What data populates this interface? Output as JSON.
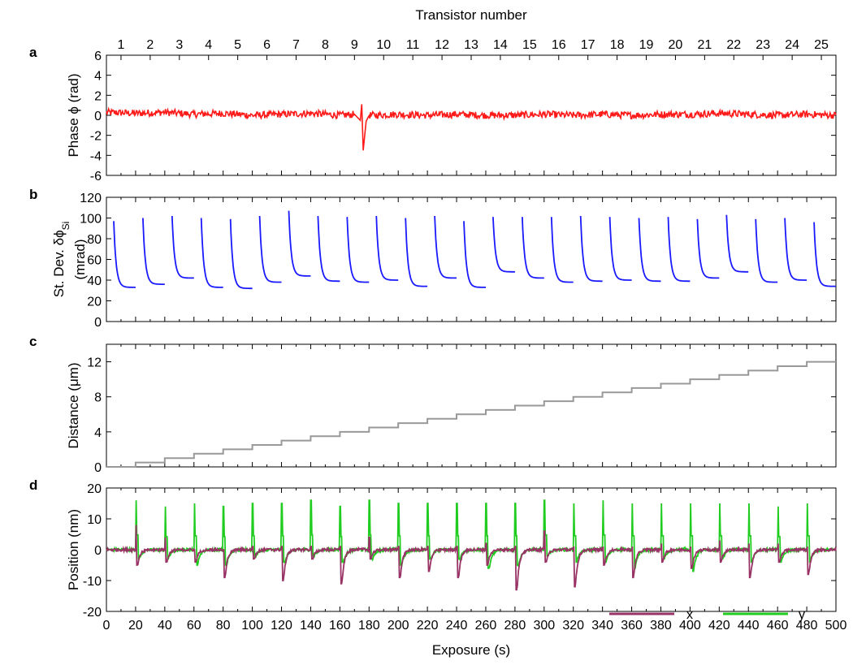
{
  "figure": {
    "top_axis_title": "Transistor number",
    "x_axis_title": "Exposure (s)",
    "legend": {
      "x_label": "x",
      "y_label": "y"
    }
  },
  "colors": {
    "phase": "#ff1a1a",
    "stdev": "#1a1aff",
    "distance": "#999999",
    "pos_x": "#993366",
    "pos_y": "#1fcc1f"
  },
  "chart_data": [
    {
      "id": "a",
      "type": "line",
      "panel_label": "a",
      "ylabel": "Phase ϕ (rad)",
      "xlabel": "Exposure (s)",
      "x2label": "Transistor number",
      "x2_ticks": [
        "1",
        "2",
        "3",
        "4",
        "5",
        "6",
        "7",
        "8",
        "9",
        "10",
        "11",
        "12",
        "13",
        "14",
        "15",
        "16",
        "17",
        "18",
        "19",
        "20",
        "21",
        "22",
        "23",
        "24",
        "25"
      ],
      "xlim": [
        0,
        500
      ],
      "ylim": [
        -6,
        6
      ],
      "yticks": [
        -6,
        -4,
        -2,
        0,
        2,
        4,
        6
      ],
      "grid": false,
      "series": [
        {
          "color": "#ff1a1a",
          "description": "noisy trace around 0 rad (about ±0.4), spike near x≈175 from +1.1 to -3.5",
          "x": [
            0,
            20,
            40,
            60,
            80,
            100,
            120,
            140,
            160,
            170,
            174,
            175,
            176,
            178,
            180,
            200,
            220,
            240,
            260,
            280,
            300,
            320,
            340,
            360,
            380,
            400,
            420,
            440,
            460,
            480,
            500
          ],
          "y": [
            0.3,
            0.2,
            0.3,
            0.1,
            0.2,
            0.0,
            0.1,
            0.2,
            0.0,
            0.1,
            -0.5,
            1.1,
            -3.5,
            -0.6,
            0.0,
            0.1,
            0.0,
            0.1,
            0.0,
            0.0,
            0.1,
            0.0,
            0.1,
            0.0,
            0.1,
            0.1,
            0.2,
            0.1,
            0.0,
            0.1,
            0.0
          ]
        }
      ]
    },
    {
      "id": "b",
      "type": "line",
      "panel_label": "b",
      "ylabel": "St. Dev. δϕ",
      "ylabel_sub": "Si",
      "ylabel2": "(mrad)",
      "xlim": [
        0,
        500
      ],
      "ylim": [
        0,
        120
      ],
      "yticks": [
        0,
        20,
        40,
        60,
        80,
        100,
        120
      ],
      "grid": false,
      "segments": [
        {
          "x0": 5,
          "x1": 20,
          "peak": 97,
          "floor": 33
        },
        {
          "x0": 25,
          "x1": 40,
          "peak": 100,
          "floor": 36
        },
        {
          "x0": 45,
          "x1": 60,
          "peak": 102,
          "floor": 42
        },
        {
          "x0": 65,
          "x1": 80,
          "peak": 100,
          "floor": 33
        },
        {
          "x0": 85,
          "x1": 100,
          "peak": 99,
          "floor": 32
        },
        {
          "x0": 105,
          "x1": 120,
          "peak": 102,
          "floor": 38
        },
        {
          "x0": 125,
          "x1": 140,
          "peak": 107,
          "floor": 44
        },
        {
          "x0": 145,
          "x1": 160,
          "peak": 102,
          "floor": 39
        },
        {
          "x0": 165,
          "x1": 180,
          "peak": 101,
          "floor": 38
        },
        {
          "x0": 185,
          "x1": 200,
          "peak": 102,
          "floor": 40
        },
        {
          "x0": 205,
          "x1": 220,
          "peak": 100,
          "floor": 34
        },
        {
          "x0": 225,
          "x1": 240,
          "peak": 102,
          "floor": 42
        },
        {
          "x0": 245,
          "x1": 260,
          "peak": 97,
          "floor": 33
        },
        {
          "x0": 265,
          "x1": 280,
          "peak": 101,
          "floor": 48
        },
        {
          "x0": 285,
          "x1": 300,
          "peak": 101,
          "floor": 42
        },
        {
          "x0": 305,
          "x1": 320,
          "peak": 101,
          "floor": 38
        },
        {
          "x0": 325,
          "x1": 340,
          "peak": 102,
          "floor": 39
        },
        {
          "x0": 345,
          "x1": 360,
          "peak": 101,
          "floor": 40
        },
        {
          "x0": 365,
          "x1": 380,
          "peak": 100,
          "floor": 39
        },
        {
          "x0": 385,
          "x1": 400,
          "peak": 101,
          "floor": 39
        },
        {
          "x0": 405,
          "x1": 420,
          "peak": 99,
          "floor": 42
        },
        {
          "x0": 425,
          "x1": 440,
          "peak": 103,
          "floor": 48
        },
        {
          "x0": 445,
          "x1": 460,
          "peak": 99,
          "floor": 38
        },
        {
          "x0": 465,
          "x1": 480,
          "peak": 100,
          "floor": 40
        },
        {
          "x0": 485,
          "x1": 500,
          "peak": 96,
          "floor": 34
        }
      ]
    },
    {
      "id": "c",
      "type": "line",
      "panel_label": "c",
      "ylabel": "Distance (μm)",
      "xlim": [
        0,
        500
      ],
      "ylim": [
        0,
        14
      ],
      "yticks": [
        0,
        4,
        8,
        12
      ],
      "grid": false,
      "step_seconds": 20,
      "step_height_um": 0.5,
      "series": [
        {
          "color": "#999999",
          "description": "staircase rising 0.5 μm every 20 s from 0 to 12 μm"
        }
      ]
    },
    {
      "id": "d",
      "type": "line",
      "panel_label": "d",
      "ylabel": "Position (nm)",
      "xlabel": "Exposure (s)",
      "xlim": [
        0,
        500
      ],
      "ylim": [
        -20,
        20
      ],
      "yticks": [
        -20,
        -10,
        0,
        10,
        20
      ],
      "xticks": [
        0,
        20,
        40,
        60,
        80,
        100,
        120,
        140,
        160,
        180,
        200,
        220,
        240,
        260,
        280,
        300,
        320,
        340,
        360,
        380,
        400,
        420,
        440,
        460,
        480,
        500
      ],
      "grid": false,
      "legend_position": "bottom-right",
      "spike_times": [
        20,
        40,
        60,
        80,
        100,
        120,
        140,
        160,
        180,
        200,
        220,
        240,
        260,
        280,
        300,
        320,
        340,
        360,
        380,
        400,
        420,
        440,
        460,
        480
      ],
      "series": [
        {
          "name": "x",
          "color": "#993366",
          "spike_peaks": [
            8,
            4,
            0,
            0,
            1,
            1,
            1,
            1,
            4,
            1,
            1,
            1,
            2,
            1,
            6,
            1,
            1,
            1,
            2,
            1,
            3,
            2,
            2,
            1
          ],
          "spike_troughs": [
            -5,
            -4,
            -4,
            -9,
            -3,
            -10,
            -3,
            -11,
            -3,
            -9,
            -7,
            -9,
            -5,
            -13,
            -4,
            -12,
            -5,
            -9,
            -4,
            -6,
            -4,
            -9,
            -4,
            -8
          ]
        },
        {
          "name": "y",
          "color": "#1fcc1f",
          "spike_peaks": [
            16,
            14,
            15,
            14,
            15,
            15,
            16,
            14,
            16,
            15,
            15,
            15,
            15,
            15,
            16,
            15,
            16,
            15,
            15,
            15,
            15,
            15,
            14,
            15
          ],
          "spike_troughs": [
            -3,
            -3,
            -5,
            -5,
            -2,
            -4,
            -2,
            -4,
            -3,
            -5,
            -3,
            -3,
            -6,
            -5,
            -2,
            -4,
            -4,
            -6,
            -3,
            -7,
            -3,
            -4,
            -4,
            -4
          ]
        }
      ]
    }
  ]
}
